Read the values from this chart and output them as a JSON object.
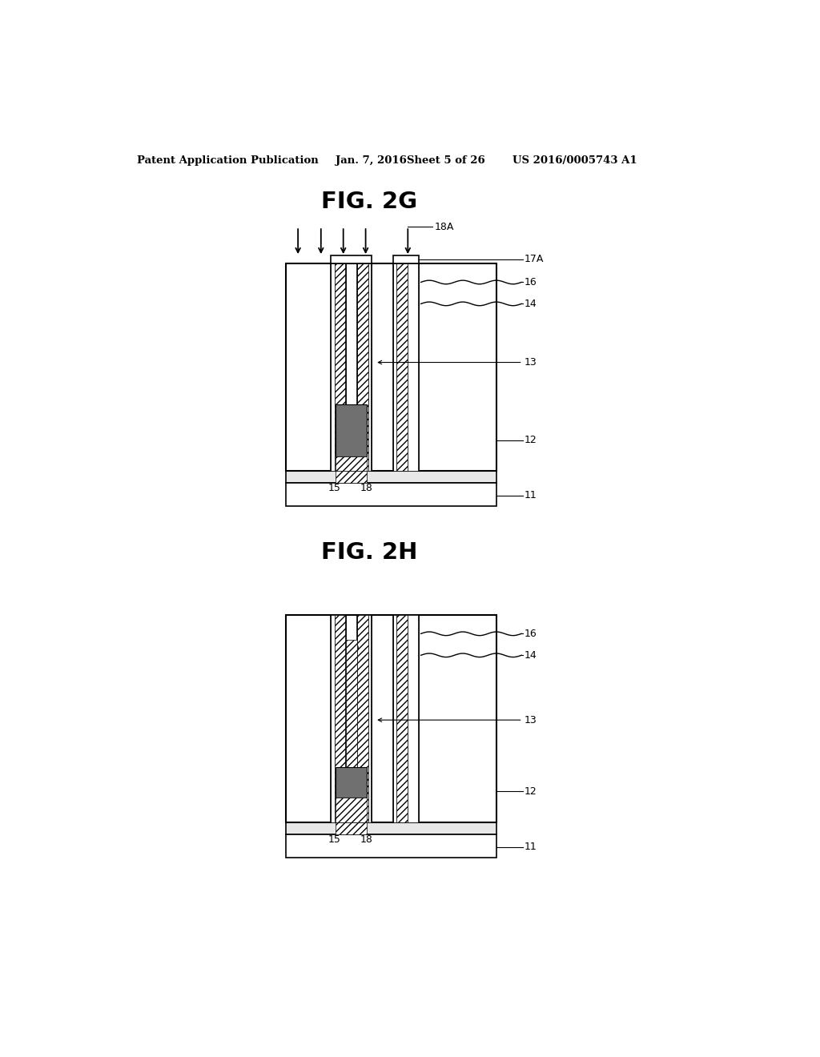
{
  "bg_color": "#ffffff",
  "line_color": "#000000",
  "header_text": "Patent Application Publication",
  "header_date": "Jan. 7, 2016",
  "header_sheet": "Sheet 5 of 26",
  "header_patent": "US 2016/0005743 A1",
  "fig2g_title": "FIG. 2G",
  "fig2h_title": "FIG. 2H",
  "hatch_pattern": "////",
  "dark_plug_color": "#707070",
  "substrate_strip_color": "#e0e0e0",
  "note_16_wavy": true,
  "note_14_wavy": true
}
